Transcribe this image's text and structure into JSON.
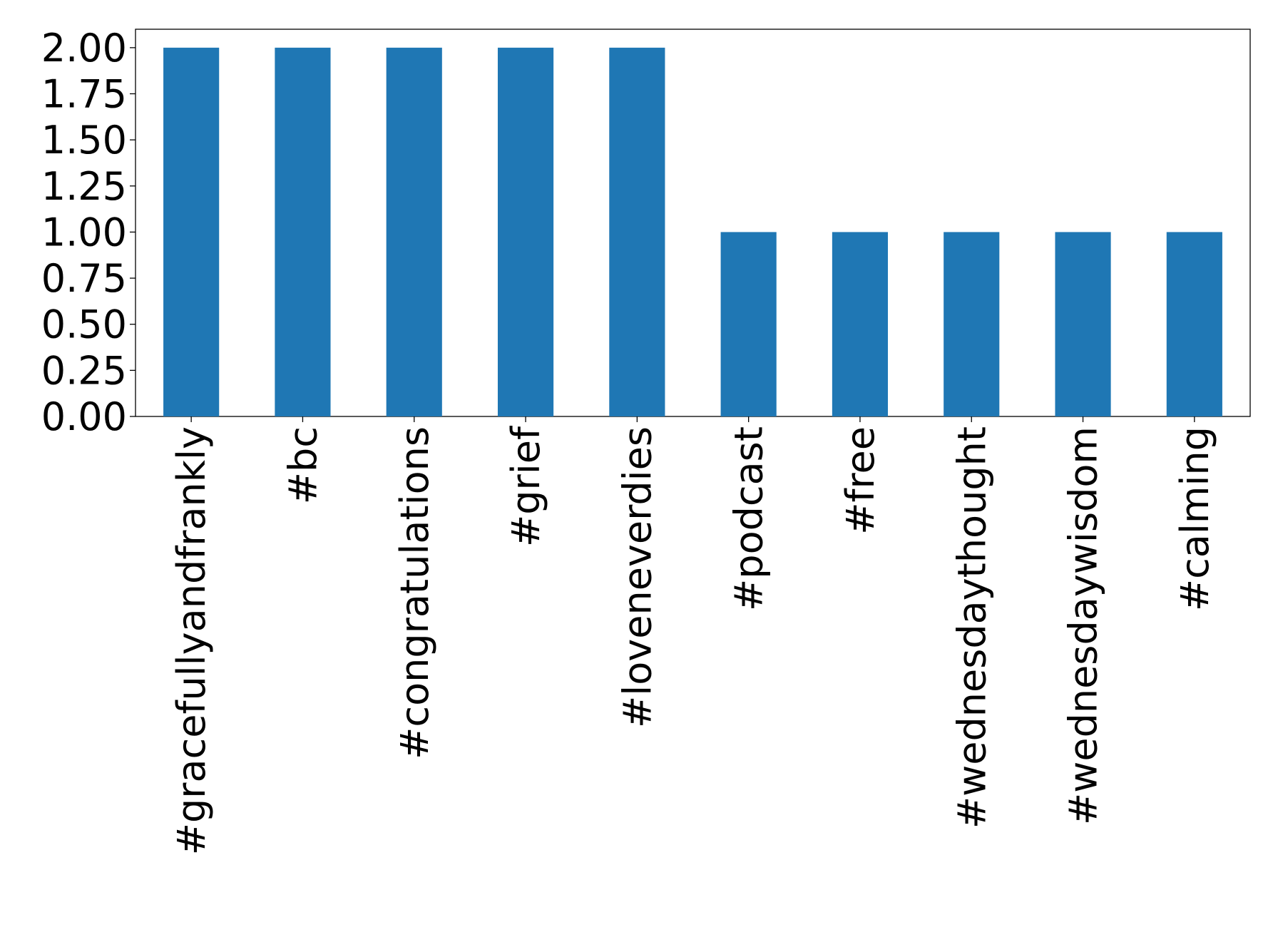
{
  "chart_data": {
    "type": "bar",
    "categories": [
      "#gracefullyandfrankly",
      "#bc",
      "#congratulations",
      "#grief",
      "#loveneverdies",
      "#podcast",
      "#free",
      "#wednesdaythought",
      "#wednesdaywisdom",
      "#calming"
    ],
    "values": [
      2,
      2,
      2,
      2,
      2,
      1,
      1,
      1,
      1,
      1
    ],
    "color": "#1f77b4",
    "ylim": [
      0,
      2.1
    ],
    "yticks": [
      {
        "value": 0,
        "label": "0.00"
      },
      {
        "value": 0.25,
        "label": "0.25"
      },
      {
        "value": 0.5,
        "label": "0.50"
      },
      {
        "value": 0.75,
        "label": "0.75"
      },
      {
        "value": 1,
        "label": "1.00"
      },
      {
        "value": 1.25,
        "label": "1.25"
      },
      {
        "value": 1.5,
        "label": "1.50"
      },
      {
        "value": 1.75,
        "label": "1.75"
      },
      {
        "value": 2,
        "label": "2.00"
      }
    ],
    "grid": false
  }
}
